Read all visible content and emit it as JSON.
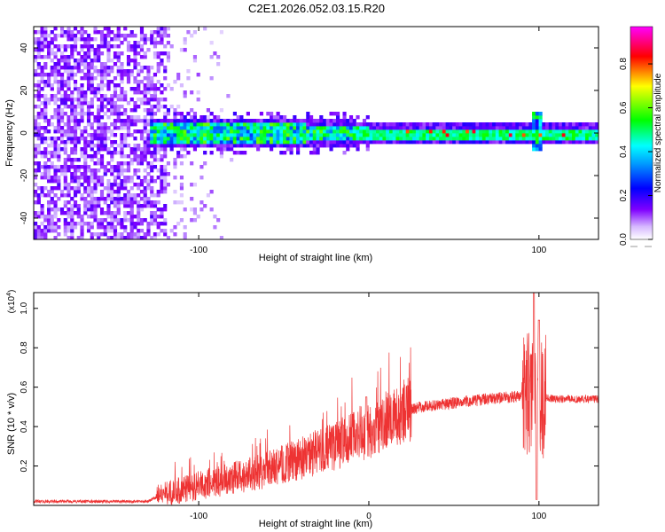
{
  "title": "C2E1.2026.052.03.15.R20",
  "chart_data": [
    {
      "type": "heatmap",
      "title": "C2E1.2026.052.03.15.R20",
      "xlabel": "Height of straight line (km)",
      "ylabel": "Frequency (Hz)",
      "xlim": [
        -197,
        135
      ],
      "ylim": [
        -50,
        50
      ],
      "x_ticks": [
        -100,
        100
      ],
      "y_ticks": [
        -40,
        -20,
        0,
        20,
        40
      ],
      "colorbar": {
        "label": "Normalized spectral amplitude",
        "range": [
          0,
          0.97
        ],
        "ticks": [
          0.0,
          0.2,
          0.4,
          0.6,
          0.8
        ],
        "colormap": [
          "#ffffff",
          "#c9a6ff",
          "#7f00ff",
          "#0000ff",
          "#00ffff",
          "#00ff00",
          "#ffff00",
          "#ff0000",
          "#ff00ff"
        ]
      },
      "features": {
        "noise_region_x": [
          -197,
          -120
        ],
        "fading_noise_x": [
          -120,
          -80
        ],
        "signal_band_center_hz": 0,
        "signal_band_halfwidth_hz": [
          [
            -130,
            5
          ],
          [
            -20,
            4
          ],
          [
            0,
            2.5
          ],
          [
            135,
            2.5
          ]
        ],
        "spike_x": 97
      }
    },
    {
      "type": "line",
      "xlabel": "Height of straight line (km)",
      "ylabel": "SNR (10 * v/v)",
      "y_scale_label": "(x10",
      "y_scale_exponent": "4",
      "xlim": [
        -197,
        135
      ],
      "ylim": [
        0,
        1.08
      ],
      "x_ticks": [
        -100,
        0,
        100
      ],
      "y_ticks": [
        0.2,
        0.4,
        0.6,
        0.8,
        1.0
      ],
      "color": "#ee3333",
      "trend": [
        [
          -197,
          0.02
        ],
        [
          -130,
          0.02
        ],
        [
          -120,
          0.06
        ],
        [
          -100,
          0.1
        ],
        [
          -80,
          0.14
        ],
        [
          -60,
          0.18
        ],
        [
          -40,
          0.24
        ],
        [
          -20,
          0.3
        ],
        [
          -10,
          0.35
        ],
        [
          0,
          0.38
        ],
        [
          10,
          0.43
        ],
        [
          20,
          0.48
        ],
        [
          30,
          0.5
        ],
        [
          50,
          0.52
        ],
        [
          70,
          0.54
        ],
        [
          90,
          0.555
        ],
        [
          95,
          0.56
        ],
        [
          100,
          0.55
        ],
        [
          110,
          0.54
        ],
        [
          135,
          0.54
        ]
      ],
      "peaks": [
        [
          -2,
          0.55
        ],
        [
          -1,
          0.55
        ],
        [
          97,
          1.08
        ],
        [
          100,
          0.94
        ],
        [
          98,
          0.03
        ]
      ]
    }
  ]
}
